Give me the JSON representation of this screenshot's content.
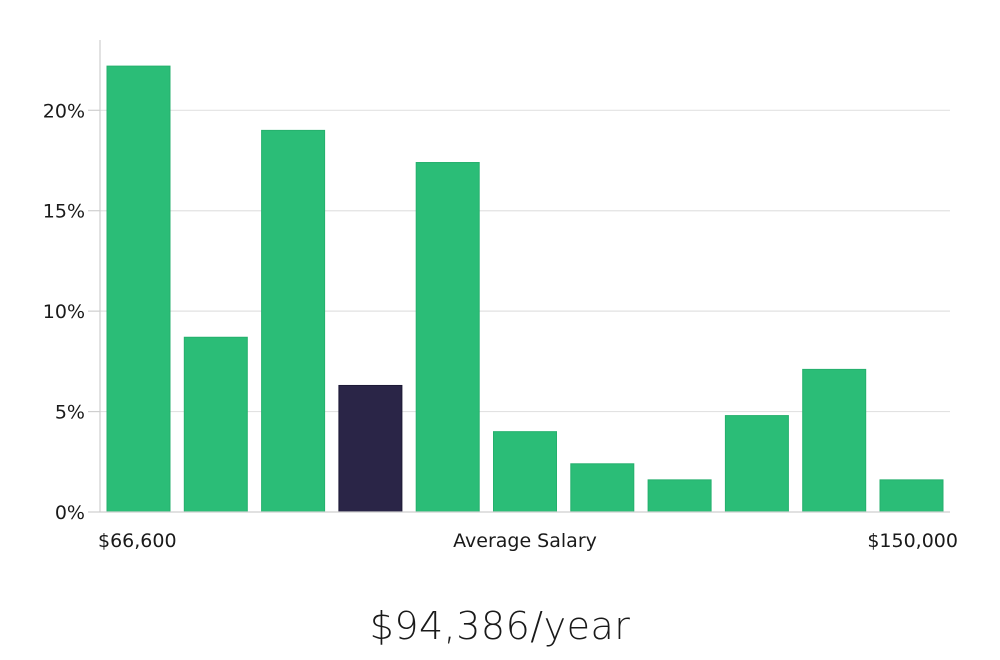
{
  "chart_data": {
    "type": "bar",
    "xlabel": "Average Salary",
    "x_range_labels": [
      "$66,600",
      "$150,000"
    ],
    "ylim": [
      0,
      23.5
    ],
    "y_ticks": [
      0,
      5,
      10,
      15,
      20
    ],
    "y_tick_labels": [
      "0%",
      "5%",
      "10%",
      "15%",
      "20%"
    ],
    "values": [
      22.2,
      8.7,
      19.0,
      6.3,
      17.4,
      4.0,
      2.4,
      1.6,
      4.8,
      7.1,
      1.6
    ],
    "highlight_index": 3,
    "colors": {
      "bar": "#2bbd77",
      "highlight": "#2a2547",
      "grid": "#e2e2e2",
      "axis": "#cfcfcf"
    },
    "grid": true,
    "legend": "none"
  },
  "salary_value": "$94,386/year"
}
